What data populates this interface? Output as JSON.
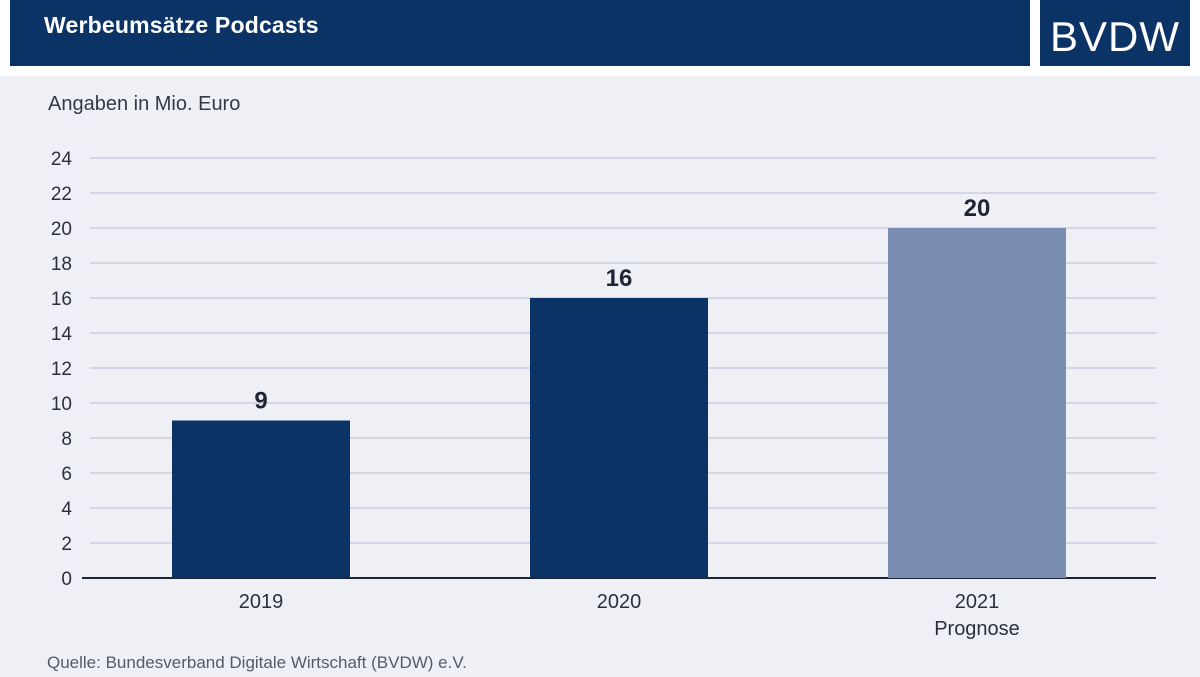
{
  "header": {
    "title": "Werbeumsätze Podcasts",
    "logo_text": "BVDW"
  },
  "unit_label": "Angaben in Mio. Euro",
  "source": "Quelle: Bundesverband Digitale Wirtschaft (BVDW) e.V.",
  "colors": {
    "header_bg": "#0b3366",
    "bar_actual": "#0b3366",
    "bar_forecast": "#7a8db3",
    "background": "#eef0f5",
    "gridline": "#c9cde0"
  },
  "chart_data": {
    "type": "bar",
    "categories": [
      "2019",
      "2020",
      "2021"
    ],
    "category_sublabels": [
      "",
      "",
      "Prognose"
    ],
    "values": [
      9,
      16,
      20
    ],
    "forecast": [
      false,
      false,
      true
    ],
    "ylim": [
      0,
      24
    ],
    "yticks": [
      0,
      2,
      4,
      6,
      8,
      10,
      12,
      14,
      16,
      18,
      20,
      22,
      24
    ],
    "grid": true,
    "data_labels": true
  }
}
